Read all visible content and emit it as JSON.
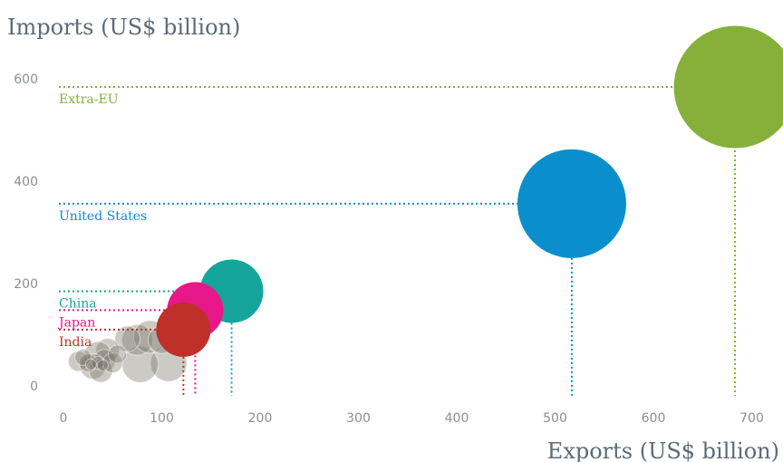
{
  "chart_data": {
    "type": "scatter",
    "title": "",
    "ylabel": "Imports (US$ billion)",
    "xlabel": "Exports (US$ billion)",
    "xlim": [
      0,
      750
    ],
    "ylim": [
      0,
      620
    ],
    "x_ticks": [
      "0",
      "100",
      "200",
      "300",
      "400",
      "500",
      "600",
      "700"
    ],
    "y_ticks": [
      "0",
      "200",
      "400",
      "600"
    ],
    "grid": false,
    "legend": "none",
    "highlighted": [
      {
        "name": "Extra-EU",
        "x": 683,
        "y": 584,
        "size": 135,
        "color": "#86b03a"
      },
      {
        "name": "United States",
        "x": 517,
        "y": 356,
        "size": 120,
        "color": "#0a8fcc"
      },
      {
        "name": "China",
        "x": 171,
        "y": 185,
        "size": 70,
        "color": "#16a59a"
      },
      {
        "name": "Japan",
        "x": 134,
        "y": 148,
        "size": 62,
        "color": "#e8178a"
      },
      {
        "name": "India",
        "x": 122,
        "y": 110,
        "size": 60,
        "color": "#c0302a"
      }
    ],
    "others": [
      {
        "x": 107,
        "y": 44,
        "size": 40
      },
      {
        "x": 78,
        "y": 42,
        "size": 40
      },
      {
        "x": 75,
        "y": 90,
        "size": 34
      },
      {
        "x": 88,
        "y": 96,
        "size": 36
      },
      {
        "x": 100,
        "y": 90,
        "size": 30
      },
      {
        "x": 65,
        "y": 92,
        "size": 28
      },
      {
        "x": 45,
        "y": 70,
        "size": 26
      },
      {
        "x": 35,
        "y": 60,
        "size": 30
      },
      {
        "x": 42,
        "y": 50,
        "size": 24
      },
      {
        "x": 30,
        "y": 38,
        "size": 28
      },
      {
        "x": 38,
        "y": 30,
        "size": 26
      },
      {
        "x": 15,
        "y": 48,
        "size": 22
      },
      {
        "x": 25,
        "y": 45,
        "size": 20
      },
      {
        "x": 20,
        "y": 56,
        "size": 18
      },
      {
        "x": 50,
        "y": 45,
        "size": 22
      },
      {
        "x": 55,
        "y": 62,
        "size": 20
      },
      {
        "x": 35,
        "y": 45,
        "size": 14
      },
      {
        "x": 40,
        "y": 40,
        "size": 12
      },
      {
        "x": 28,
        "y": 42,
        "size": 12
      }
    ]
  }
}
